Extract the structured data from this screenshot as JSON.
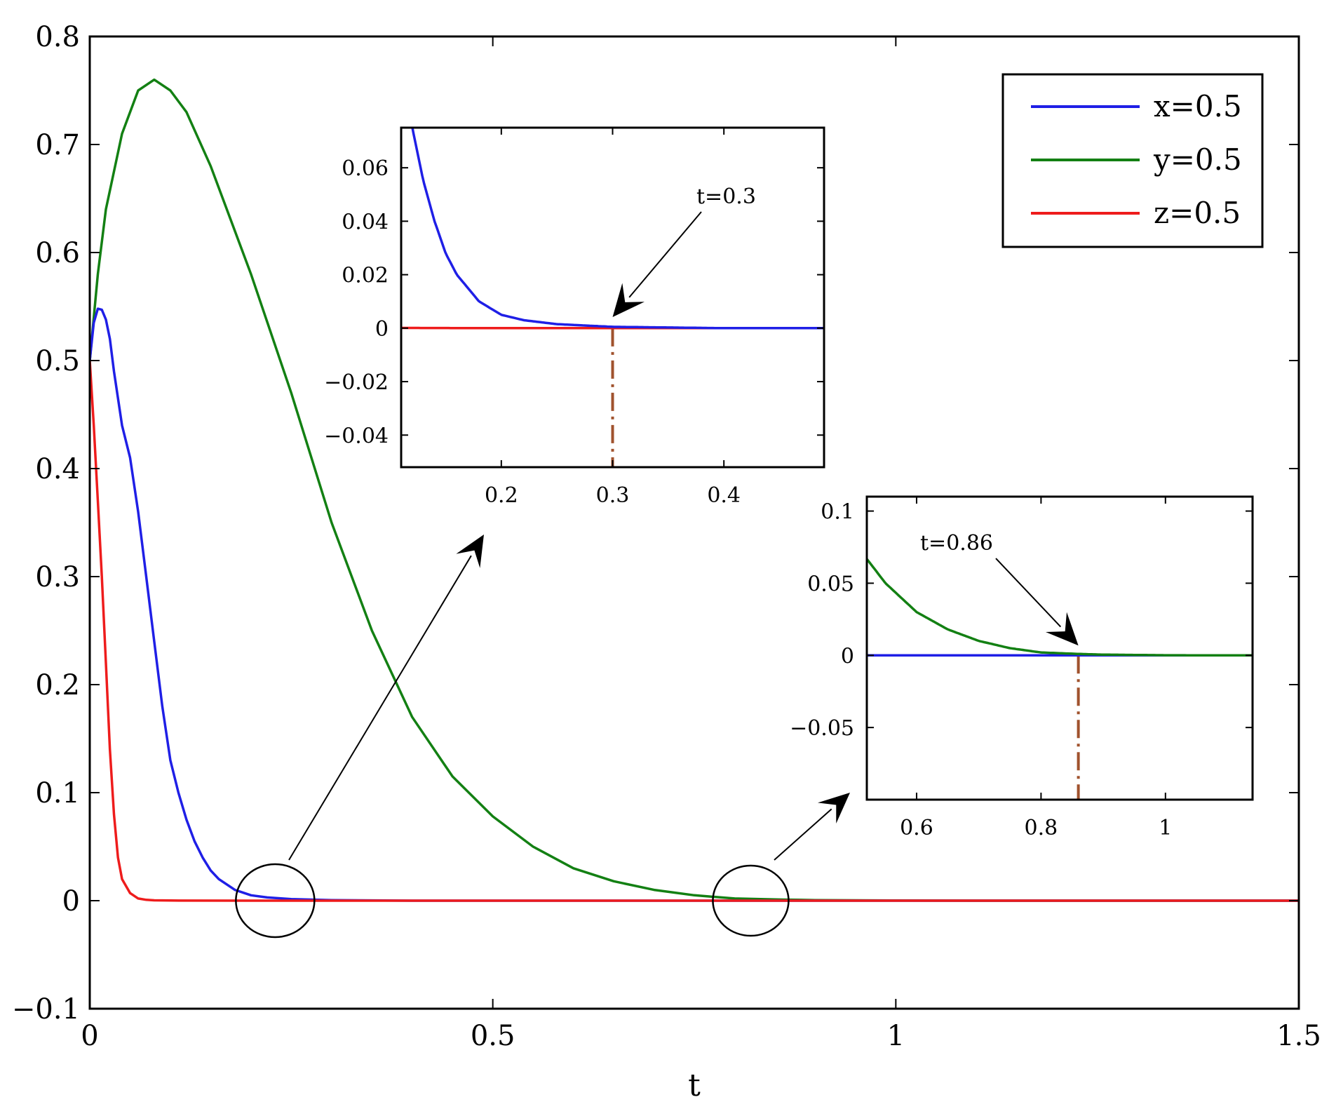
{
  "chart_data": {
    "type": "line",
    "xlabel": "t",
    "ylabel": "",
    "title": "",
    "xlim": [
      0,
      1.5
    ],
    "ylim": [
      -0.1,
      0.8
    ],
    "x_ticks": [
      "0",
      "0.5",
      "1",
      "1.5"
    ],
    "y_ticks": [
      "−0.1",
      "0",
      "0.1",
      "0.2",
      "0.3",
      "0.4",
      "0.5",
      "0.6",
      "0.7",
      "0.8"
    ],
    "legend": {
      "placement": "top-right",
      "entries": [
        {
          "label": "x=0.5",
          "color": "#1f1fe6"
        },
        {
          "label": "y=0.5",
          "color": "#138013"
        },
        {
          "label": "z=0.5",
          "color": "#ee1c1c"
        }
      ]
    },
    "series": [
      {
        "name": "x=0.5",
        "color": "#1f1fe6",
        "x": [
          0,
          0.005,
          0.01,
          0.015,
          0.02,
          0.025,
          0.03,
          0.04,
          0.05,
          0.06,
          0.07,
          0.08,
          0.09,
          0.1,
          0.11,
          0.12,
          0.13,
          0.14,
          0.15,
          0.16,
          0.18,
          0.2,
          0.22,
          0.25,
          0.3,
          0.4,
          0.6,
          1.0,
          1.5
        ],
        "y": [
          0.5,
          0.535,
          0.548,
          0.547,
          0.538,
          0.52,
          0.49,
          0.44,
          0.41,
          0.36,
          0.3,
          0.24,
          0.18,
          0.13,
          0.1,
          0.075,
          0.055,
          0.04,
          0.028,
          0.02,
          0.01,
          0.005,
          0.003,
          0.0015,
          0.0005,
          0,
          0,
          0,
          0
        ]
      },
      {
        "name": "y=0.5",
        "color": "#138013",
        "x": [
          0,
          0.01,
          0.02,
          0.04,
          0.06,
          0.08,
          0.1,
          0.12,
          0.15,
          0.2,
          0.25,
          0.3,
          0.35,
          0.4,
          0.45,
          0.5,
          0.55,
          0.6,
          0.65,
          0.7,
          0.75,
          0.8,
          0.86,
          0.9,
          1.0,
          1.1,
          1.2,
          1.5
        ],
        "y": [
          0.5,
          0.58,
          0.64,
          0.71,
          0.75,
          0.76,
          0.75,
          0.73,
          0.68,
          0.58,
          0.47,
          0.35,
          0.25,
          0.17,
          0.115,
          0.078,
          0.05,
          0.03,
          0.018,
          0.01,
          0.005,
          0.002,
          0.001,
          0.0005,
          0.0001,
          0,
          0,
          0
        ]
      },
      {
        "name": "z=0.5",
        "color": "#ee1c1c",
        "x": [
          0,
          0.005,
          0.01,
          0.015,
          0.02,
          0.025,
          0.03,
          0.035,
          0.04,
          0.05,
          0.06,
          0.07,
          0.08,
          0.1,
          0.2,
          0.5,
          1.0,
          1.5
        ],
        "y": [
          0.5,
          0.44,
          0.37,
          0.3,
          0.22,
          0.14,
          0.08,
          0.04,
          0.02,
          0.007,
          0.002,
          0.0008,
          0.0003,
          0.0001,
          0,
          0,
          0,
          0
        ]
      }
    ],
    "insets": [
      {
        "name": "inset-1",
        "xlim": [
          0.11,
          0.49
        ],
        "ylim": [
          -0.052,
          0.075
        ],
        "x_ticks": [
          "0.2",
          "0.3",
          "0.4"
        ],
        "y_ticks": [
          "−0.04",
          "−0.02",
          "0",
          "0.02",
          "0.04",
          "0.06"
        ],
        "vline_x": 0.3,
        "annotation": "t=0.3",
        "annotation_target": [
          0.3,
          0.001
        ]
      },
      {
        "name": "inset-2",
        "xlim": [
          0.52,
          1.14
        ],
        "ylim": [
          -0.1,
          0.11
        ],
        "x_ticks": [
          "0.6",
          "0.8",
          "1"
        ],
        "y_ticks": [
          "−0.05",
          "0",
          "0.05",
          "0.1"
        ],
        "vline_x": 0.86,
        "annotation": "t=0.86",
        "annotation_target": [
          0.86,
          0.001
        ]
      }
    ]
  }
}
